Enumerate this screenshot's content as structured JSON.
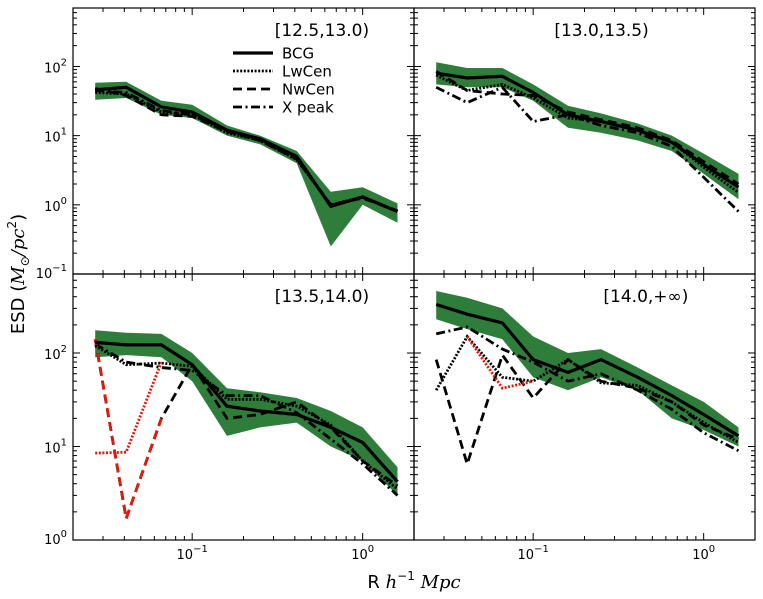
{
  "colors": {
    "band": "#2f7d3b",
    "main": "#000000",
    "red": "#e01b0b"
  },
  "figure": {
    "xlabel": {
      "prefix": "R ",
      "math": "h",
      "sup": "−1",
      "suffix": " Mpc"
    },
    "ylabel": {
      "prefix": "ESD (",
      "math": "M",
      "sub": "⊙",
      "mid": "/pc",
      "sup": "2",
      "suffix": ")"
    }
  },
  "ticks": {
    "x": [
      {
        "value": 0.1,
        "base": "10",
        "exp": "−1"
      },
      {
        "value": 1,
        "base": "10",
        "exp": "0"
      }
    ],
    "y_top": [
      {
        "value": 0.1,
        "base": "10",
        "exp": "−1"
      },
      {
        "value": 1,
        "base": "10",
        "exp": "0"
      },
      {
        "value": 10,
        "base": "10",
        "exp": "1"
      },
      {
        "value": 100,
        "base": "10",
        "exp": "2"
      }
    ],
    "y_bottom": [
      {
        "value": 1,
        "base": "10",
        "exp": "0"
      },
      {
        "value": 10,
        "base": "10",
        "exp": "1"
      },
      {
        "value": 100,
        "base": "10",
        "exp": "2"
      }
    ]
  },
  "legend": [
    {
      "label": "BCG",
      "style": "solid"
    },
    {
      "label": "LwCen",
      "style": "dotted"
    },
    {
      "label": "NwCen",
      "style": "dashed"
    },
    {
      "label": "X peak",
      "style": "dashdot"
    }
  ],
  "chart_data": [
    {
      "type": "line",
      "title": "[12.5,13.0)",
      "xscale": "log",
      "yscale": "log",
      "xlim": [
        0.02,
        2.0
      ],
      "ylim": [
        0.1,
        700
      ],
      "legend": "top-right",
      "x": [
        0.027,
        0.041,
        0.066,
        0.1,
        0.16,
        0.25,
        0.41,
        0.65,
        1.0,
        1.6
      ],
      "band": {
        "lower": [
          33,
          35,
          20,
          18,
          10,
          7.5,
          4.0,
          0.25,
          1.0,
          0.55
        ],
        "upper": [
          58,
          60,
          32,
          28,
          14,
          10,
          6.0,
          1.55,
          1.8,
          1.05
        ]
      },
      "series": [
        {
          "name": "BCG",
          "style": "solid",
          "color": "#000000",
          "values": [
            46,
            50,
            26,
            22,
            12,
            9,
            5,
            0.95,
            1.3,
            0.8
          ]
        },
        {
          "name": "LwCen",
          "style": "dotted",
          "color": "#000000",
          "values": [
            42,
            40,
            22,
            20,
            11,
            8.5,
            4.5,
            1.0,
            1.3,
            0.8
          ]
        },
        {
          "name": "NwCen",
          "style": "dashed",
          "color": "#000000",
          "values": [
            48,
            38,
            20,
            19,
            11.5,
            8.5,
            4.6,
            1.0,
            1.25,
            0.82
          ]
        },
        {
          "name": "X peak",
          "style": "dashdot",
          "color": "#000000",
          "values": [
            45,
            42,
            23,
            20,
            12,
            8.8,
            4.7,
            0.98,
            1.28,
            0.8
          ]
        }
      ]
    },
    {
      "type": "line",
      "title": "[13.0,13.5)",
      "xscale": "log",
      "yscale": "log",
      "xlim": [
        0.02,
        2.0
      ],
      "ylim": [
        0.1,
        700
      ],
      "x": [
        0.027,
        0.041,
        0.066,
        0.1,
        0.16,
        0.25,
        0.41,
        0.65,
        1.0,
        1.6
      ],
      "band": {
        "lower": [
          55,
          50,
          50,
          32,
          13,
          11,
          8.5,
          6.0,
          2.8,
          1.2
        ],
        "upper": [
          115,
          95,
          95,
          55,
          27,
          21,
          15,
          10,
          5.5,
          2.8
        ]
      },
      "series": [
        {
          "name": "BCG",
          "style": "solid",
          "color": "#000000",
          "values": [
            80,
            68,
            72,
            42,
            20,
            16,
            12,
            8,
            3.8,
            1.8
          ]
        },
        {
          "name": "LwCen",
          "style": "dotted",
          "color": "#000000",
          "values": [
            75,
            45,
            55,
            35,
            18,
            16,
            12,
            8,
            3.5,
            1.5
          ]
        },
        {
          "name": "NwCen",
          "style": "dashed",
          "color": "#000000",
          "values": [
            85,
            45,
            40,
            38,
            22,
            17,
            13,
            8.5,
            4.2,
            2.0
          ]
        },
        {
          "name": "X peak",
          "style": "dashdot",
          "color": "#000000",
          "values": [
            50,
            30,
            50,
            16,
            20,
            14,
            11,
            7,
            2.5,
            0.8
          ]
        }
      ]
    },
    {
      "type": "line",
      "title": "[13.5,14.0)",
      "xscale": "log",
      "yscale": "log",
      "xlim": [
        0.02,
        2.0
      ],
      "ylim": [
        1,
        700
      ],
      "x": [
        0.027,
        0.041,
        0.066,
        0.1,
        0.16,
        0.25,
        0.41,
        0.65,
        1.0,
        1.6
      ],
      "band": {
        "lower": [
          90,
          95,
          90,
          50,
          13,
          16,
          18,
          10,
          7,
          3.0
        ],
        "upper": [
          175,
          165,
          160,
          100,
          42,
          38,
          33,
          24,
          16,
          6.0
        ]
      },
      "series": [
        {
          "name": "BCG",
          "style": "solid",
          "color": "#000000",
          "values": [
            130,
            122,
            122,
            75,
            27,
            24,
            22,
            16,
            11,
            4.2
          ]
        },
        {
          "name": "LwCen",
          "style": "dotted",
          "color": "#000000",
          "values": [
            120,
            75,
            78,
            72,
            32,
            32,
            27,
            17,
            7,
            3.5
          ]
        },
        {
          "name": "LwCen (red)",
          "style": "dotted",
          "color": "#e01b0b",
          "x": [
            0.027,
            0.041,
            0.066
          ],
          "values": [
            8.5,
            8.7,
            80
          ]
        },
        {
          "name": "NwCen",
          "style": "dashed",
          "color": "#000000",
          "values": [
            140,
            1.7,
            20,
            75,
            20,
            22,
            30,
            16,
            7,
            3.8
          ]
        },
        {
          "name": "NwCen (red)",
          "style": "dashed",
          "color": "#e01b0b",
          "x": [
            0.027,
            0.041,
            0.066
          ],
          "values": [
            140,
            1.7,
            20
          ]
        },
        {
          "name": "X peak",
          "style": "dashdot",
          "color": "#000000",
          "values": [
            125,
            80,
            70,
            65,
            35,
            35,
            23,
            12,
            6.5,
            3.0
          ]
        }
      ]
    },
    {
      "type": "line",
      "title": "[14.0,+∞)",
      "xscale": "log",
      "yscale": "log",
      "xlim": [
        0.02,
        2.0
      ],
      "ylim": [
        1,
        700
      ],
      "x": [
        0.027,
        0.041,
        0.066,
        0.1,
        0.16,
        0.25,
        0.41,
        0.65,
        1.0,
        1.6
      ],
      "band": {
        "lower": [
          230,
          180,
          140,
          55,
          40,
          55,
          40,
          20,
          15,
          10
        ],
        "upper": [
          460,
          390,
          300,
          150,
          100,
          110,
          70,
          45,
          30,
          16
        ]
      },
      "series": [
        {
          "name": "BCG",
          "style": "solid",
          "color": "#000000",
          "values": [
            330,
            260,
            210,
            85,
            62,
            85,
            55,
            35,
            22,
            13
          ]
        },
        {
          "name": "LwCen",
          "style": "dotted",
          "color": "#000000",
          "values": [
            40,
            150,
            55,
            50,
            85,
            48,
            45,
            30,
            18,
            11
          ]
        },
        {
          "name": "LwCen (red)",
          "style": "dotted",
          "color": "#e01b0b",
          "x": [
            0.041,
            0.066,
            0.1
          ],
          "values": [
            150,
            42,
            50
          ]
        },
        {
          "name": "NwCen",
          "style": "dashed",
          "color": "#000000",
          "values": [
            85,
            6.5,
            95,
            33,
            85,
            50,
            42,
            30,
            17,
            12
          ]
        },
        {
          "name": "X peak",
          "style": "dashdot",
          "color": "#000000",
          "values": [
            160,
            190,
            110,
            80,
            50,
            60,
            40,
            25,
            14,
            9
          ]
        }
      ]
    }
  ]
}
